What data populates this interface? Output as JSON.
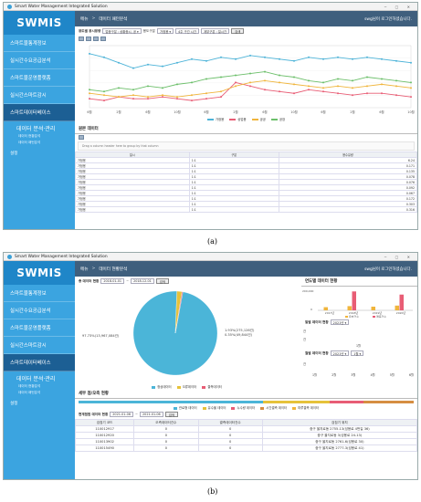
{
  "app": {
    "title": "Smart Water Management Integrated Solution",
    "logo": "SWMIS",
    "window_controls": "─ ▢ ✕"
  },
  "nav": {
    "items": [
      "스마트물통계정보",
      "실시간수요공급분석",
      "스마트물운영플랫폼",
      "실시간스마트감시",
      "스마트데이터베이스"
    ],
    "sub_title": "데이터 분석·관리",
    "sub_items": [
      "데이터 현황분석",
      "데이터 패턴분석"
    ],
    "settings": "설정"
  },
  "screenA": {
    "header": {
      "home": "메뉴",
      "sep": ">",
      "page": "데이터 패턴분석",
      "user": "swg님이 로그인하셨습니다."
    },
    "filter": {
      "label": "용도별 용시용량",
      "inputs": [
        "업종구분 : 상황종시, 공 ▾",
        "용도구분",
        "가정용 ▾",
        "4주 구간 시간",
        "계부구분 : 일시간"
      ],
      "button": "검색"
    },
    "chart_data": {
      "type": "line",
      "categories": [
        "6월",
        "",
        "2월",
        "",
        "6월",
        "",
        "10월",
        "",
        "6월",
        "",
        "2월",
        "",
        "6월",
        "",
        "10월",
        "",
        "6월",
        "",
        "2월",
        "",
        "6월",
        "",
        "10월"
      ],
      "series": [
        {
          "name": "가정용",
          "color": "#4cb3d8",
          "values": [
            30,
            28,
            25,
            22,
            24,
            23,
            25,
            27,
            26,
            28,
            27,
            29,
            28,
            27,
            26,
            28,
            27,
            28,
            27,
            28,
            27,
            26,
            25
          ]
        },
        {
          "name": "상업용",
          "color": "#e85d75",
          "values": [
            5,
            4,
            6,
            5,
            5,
            6,
            5,
            4,
            5,
            6,
            14,
            12,
            10,
            9,
            8,
            10,
            9,
            8,
            7,
            8,
            8,
            7,
            6
          ]
        },
        {
          "name": "공공",
          "color": "#f0b53c",
          "values": [
            8,
            7,
            6,
            7,
            6,
            7,
            6,
            7,
            8,
            9,
            12,
            14,
            15,
            14,
            13,
            12,
            11,
            12,
            11,
            12,
            13,
            12,
            11
          ]
        },
        {
          "name": "공장",
          "color": "#6cbf6a",
          "values": [
            10,
            9,
            11,
            10,
            12,
            11,
            13,
            14,
            16,
            17,
            18,
            19,
            20,
            18,
            17,
            15,
            14,
            16,
            15,
            17,
            16,
            15,
            14
          ]
        }
      ],
      "ylim": [
        0,
        250
      ]
    },
    "raw_title": "원본 데이터",
    "raw_hint": "Drag a column header here to group by that column",
    "raw_headers": [
      "일시",
      "구분",
      "용수유량"
    ],
    "raw_rows": [
      [
        "가정용",
        "1:1",
        "6.24"
      ],
      [
        "가정용",
        "1:1",
        "0.171"
      ],
      [
        "가정용",
        "1:1",
        "0.135"
      ],
      [
        "가정용",
        "1:1",
        "0.078"
      ],
      [
        "가정용",
        "1:1",
        "0.076"
      ],
      [
        "가정용",
        "1:1",
        "0.092"
      ],
      [
        "가정용",
        "1:1",
        "0.067"
      ],
      [
        "가정용",
        "1:1",
        "0.172"
      ],
      [
        "가정용",
        "1:1",
        "0.303"
      ],
      [
        "가정용",
        "1:1",
        "0.316"
      ]
    ],
    "caption": "(a)"
  },
  "screenB": {
    "header": {
      "home": "메뉴",
      "sep": ">",
      "page": "데이터 현황분석",
      "user": "swg님이 로그인하셨습니다."
    },
    "total": {
      "title": "총 데이터 현황",
      "from": "2018-01-01",
      "to": "2018-12-01",
      "button": "검색"
    },
    "pie": {
      "chart_data": {
        "type": "pie",
        "slices": [
          {
            "label": "정상데이터",
            "percent": 97.73,
            "text": "97.73%(13,967,084건)",
            "color": "#4bb5d8"
          },
          {
            "label": "오류데이터",
            "percent": 1.93,
            "text": "1.93%(275,126건)",
            "color": "#e6c23a"
          },
          {
            "label": "결측데이터",
            "percent": 0.35,
            "text": "0.35%(49,844건)",
            "color": "#e85d75"
          }
        ]
      }
    },
    "annual": {
      "title": "연도별 데이터 현황",
      "chart_data": {
        "type": "bar",
        "categories": [
          "2017년",
          "2018년",
          "2019년",
          "2020년"
        ],
        "ylim": [
          0,
          200000
        ],
        "y_ticks": [
          "200,000",
          "0"
        ],
        "legend": [
          "유효건수",
          "결측건수"
        ],
        "series": [
          {
            "name": "유효건수",
            "color": "#f0b53c",
            "values": [
              30000,
              40000,
              35000,
              45000
            ]
          },
          {
            "name": "결측건수",
            "color": "#e85d75",
            "values": [
              0,
              180000,
              0,
              150000
            ]
          }
        ]
      }
    },
    "daily": {
      "title": "일별 데이터 현황",
      "select": "2021년 ▾",
      "ylab1": "건",
      "ylab2": "건",
      "xlab": "1월"
    },
    "monthly": {
      "title": "월별 데이터 현황",
      "select": "2021년 ▾",
      "select2": "1월 ▾",
      "ylab": "건",
      "x": [
        "1월",
        "2월",
        "3월",
        "4월",
        "5월",
        "6월"
      ]
    },
    "quality": {
      "title": "세부 점/오측 현황",
      "legend": [
        "관로형 데이터",
        "유수율 데이터",
        "누수량 데이터",
        "시간결측 데이터",
        "마루결측 데이터"
      ]
    },
    "sensor": {
      "title": "현계점점 데이터 현황",
      "from": "2021-01-06",
      "to": "2021-01-06",
      "button": "검색",
      "headers": [
        "검침기 코드",
        "오측데이터건수",
        "결측데이터건수",
        "검침기 위치"
      ],
      "rows": [
        [
          "110012917",
          "0",
          "0",
          "중구 을지로동 2755-13(성용로 4번길 36)"
        ],
        [
          "110012920",
          "0",
          "0",
          "중구 을지로동 3(성용로 24-13)"
        ],
        [
          "110013902",
          "0",
          "0",
          "중구 을지로동 2761-6(성용로 30)"
        ],
        [
          "110015490",
          "0",
          "0",
          "중구 을지로동 2777-3(성용로 41)"
        ]
      ]
    },
    "caption": "(b)"
  }
}
